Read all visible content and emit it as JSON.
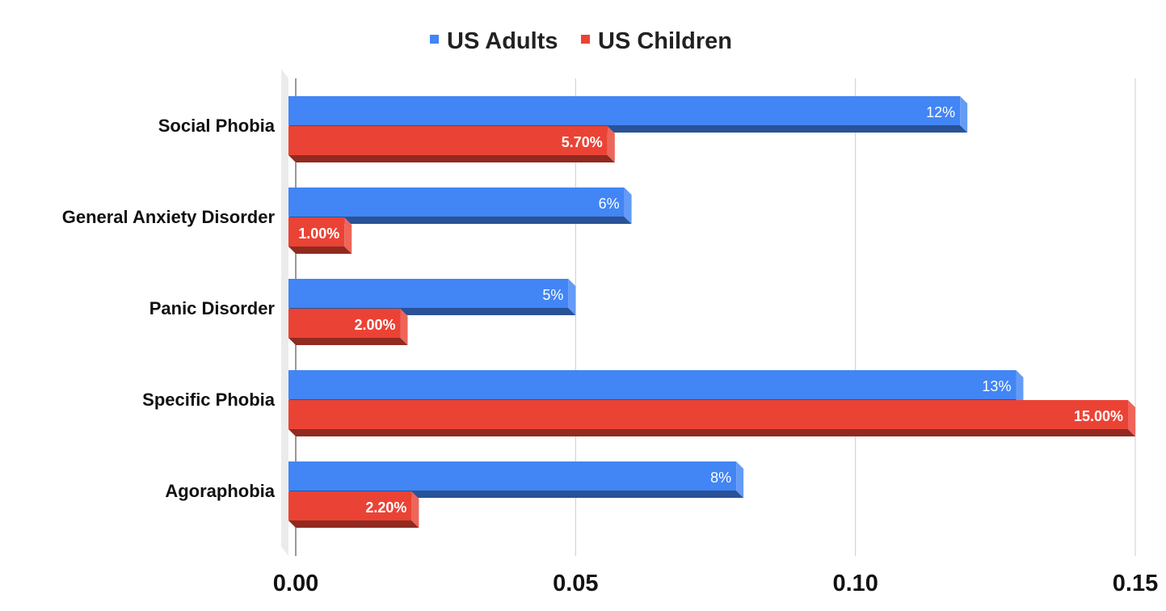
{
  "chart_data": {
    "type": "bar",
    "orientation": "horizontal",
    "style": "3d",
    "title": "",
    "xlabel": "",
    "ylabel": "",
    "categories": [
      "Social Phobia",
      "General Anxiety Disorder",
      "Panic Disorder",
      "Specific Phobia",
      "Agoraphobia"
    ],
    "series": [
      {
        "name": "US Adults",
        "color": "#4285f4",
        "values": [
          0.12,
          0.06,
          0.05,
          0.13,
          0.08
        ],
        "labels": [
          "12%",
          "6%",
          "5%",
          "13%",
          "8%"
        ]
      },
      {
        "name": "US Children",
        "color": "#ea4335",
        "values": [
          0.057,
          0.01,
          0.02,
          0.15,
          0.022
        ],
        "labels": [
          "5.70%",
          "1.00%",
          "2.00%",
          "15.00%",
          "2.20%"
        ]
      }
    ],
    "xlim": [
      0,
      0.15
    ],
    "xticks": [
      "0.00",
      "0.05",
      "0.10",
      "0.15"
    ],
    "grid": true,
    "legend_position": "top"
  }
}
